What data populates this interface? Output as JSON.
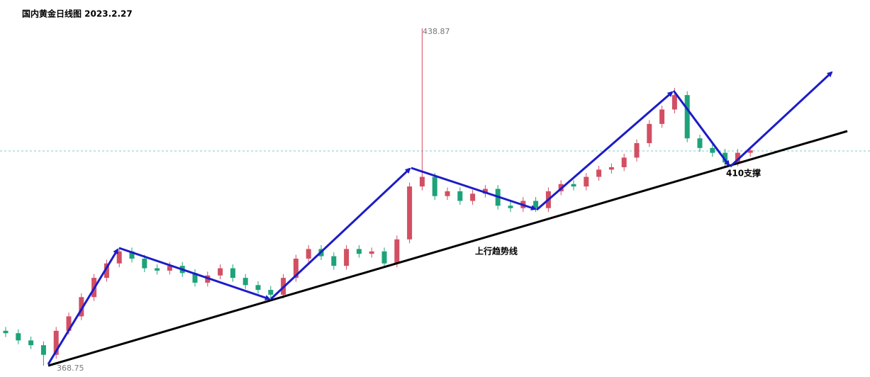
{
  "chart_data": {
    "type": "candlestick",
    "title": "国内黄金日线图 2023.2.27",
    "up_color": "#d24f63",
    "down_color": "#1ea27a",
    "annotations": {
      "high": 438.87,
      "low": 368.75,
      "trend_label": "上行趋势线",
      "support_label": "410支撑"
    },
    "candles": {
      "open": [
        376,
        375.5,
        374,
        373,
        371,
        376,
        379,
        383,
        387,
        390,
        392.5,
        391,
        389,
        388.5,
        389.5,
        388,
        386,
        387.5,
        389,
        387,
        385.5,
        384.5,
        383.5,
        387,
        391,
        393,
        391.5,
        389.5,
        393,
        392,
        392.5,
        390,
        395,
        406,
        408,
        404,
        405,
        403,
        404.5,
        405.5,
        402,
        401.5,
        403,
        401.5,
        405,
        406.5,
        406,
        408,
        409.5,
        410,
        412,
        415,
        419,
        422,
        425,
        416,
        414,
        413,
        411,
        413
      ],
      "high": [
        376.8,
        376.3,
        374.8,
        373.8,
        376.8,
        379.8,
        383.8,
        387.8,
        390.8,
        393.3,
        393.3,
        391.8,
        389.8,
        390.3,
        390.3,
        388.8,
        388.3,
        389.8,
        389.8,
        387.8,
        386.3,
        385.3,
        387.8,
        391.8,
        393.8,
        393.8,
        392.3,
        393.8,
        393.8,
        393.3,
        393.3,
        395.8,
        406.8,
        438.87,
        408.8,
        405.8,
        405.8,
        405.3,
        406.3,
        406.3,
        402.8,
        403.8,
        403.8,
        405.8,
        407.3,
        407.3,
        408.8,
        410.3,
        410.8,
        412.8,
        415.8,
        419.8,
        422.8,
        426.5,
        425.8,
        416.8,
        414.8,
        413.8,
        413.8,
        414.3
      ],
      "low": [
        374.7,
        373.2,
        372.2,
        368.75,
        370.2,
        375.2,
        378.2,
        382.2,
        386.2,
        389.2,
        390.2,
        388.2,
        387.7,
        387.7,
        387.2,
        385.2,
        385.2,
        386.7,
        386.2,
        384.7,
        383.7,
        382.7,
        382.7,
        386.2,
        390.2,
        390.7,
        388.7,
        388.7,
        391.2,
        391.2,
        389.2,
        389.2,
        394.2,
        405.2,
        403.2,
        403.2,
        402.2,
        402.2,
        403.7,
        401.2,
        400.7,
        400.7,
        400.7,
        400.7,
        404.2,
        405.2,
        405.2,
        407.2,
        408.7,
        409.2,
        411.2,
        414.2,
        418.2,
        421.2,
        415.2,
        413.2,
        412.2,
        410.2,
        410.2,
        412.2
      ],
      "close": [
        375.5,
        374,
        373,
        371,
        376,
        379,
        383,
        387,
        390,
        392.5,
        391,
        389,
        388.5,
        389.5,
        388,
        386,
        387.5,
        389,
        387,
        385.5,
        384.5,
        383.5,
        387,
        391,
        393,
        391.5,
        389.5,
        393,
        392,
        392.5,
        390,
        395,
        406,
        408,
        404,
        405,
        403,
        404.5,
        405.5,
        402,
        401.5,
        403,
        401.5,
        405,
        406.5,
        406,
        408,
        409.5,
        410,
        412,
        415,
        419,
        422,
        425,
        416,
        414,
        413,
        411,
        413,
        413.5
      ]
    }
  }
}
